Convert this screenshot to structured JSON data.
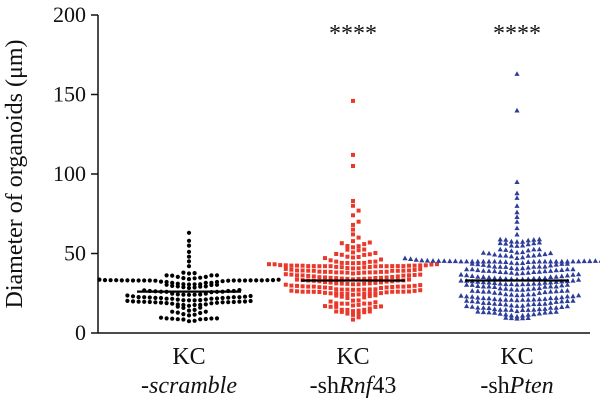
{
  "chart_data": {
    "type": "scatter",
    "subtype": "dot plot with median lines",
    "title": "",
    "xlabel": "",
    "ylabel": "Diameter of organoids (μm)",
    "ylim": [
      0,
      200
    ],
    "yticks": [
      0,
      50,
      100,
      150,
      200
    ],
    "grid": false,
    "legend": "none",
    "categories": [
      {
        "line1": "KC",
        "line2_prefix": "-",
        "line2_italic": "scramble",
        "line2_suffix": ""
      },
      {
        "line1": "KC",
        "line2_prefix": "-sh",
        "line2_italic": "Rnf",
        "line2_suffix": "43"
      },
      {
        "line1": "KC",
        "line2_prefix": "-sh",
        "line2_italic": "Pten",
        "line2_suffix": ""
      }
    ],
    "series": [
      {
        "name": "KC-scramble",
        "color": "#000000",
        "marker": "circle",
        "median": 26,
        "significance": "",
        "notable_values": [
          63,
          58,
          55,
          51,
          48,
          45,
          42,
          38
        ],
        "n": 150,
        "distribution": {
          "min": 7,
          "q1": 19,
          "median": 26,
          "q3": 33,
          "max": 63
        }
      },
      {
        "name": "KC-shRnf43",
        "color": "#e8392b",
        "marker": "square",
        "median": 33,
        "significance": "****",
        "notable_values": [
          146,
          112,
          105,
          83,
          80,
          77,
          74,
          70,
          68,
          65,
          62,
          60
        ],
        "n": 230,
        "distribution": {
          "min": 8,
          "q1": 24,
          "median": 33,
          "q3": 42,
          "max": 146
        }
      },
      {
        "name": "KC-shPten",
        "color": "#2e3d9a",
        "marker": "triangle",
        "median": 33,
        "significance": "****",
        "notable_values": [
          163,
          140,
          95,
          88,
          85,
          80,
          76,
          73,
          70,
          66,
          62,
          59
        ],
        "n": 290,
        "distribution": {
          "min": 8,
          "q1": 22,
          "median": 33,
          "q3": 45,
          "max": 163
        }
      }
    ]
  }
}
